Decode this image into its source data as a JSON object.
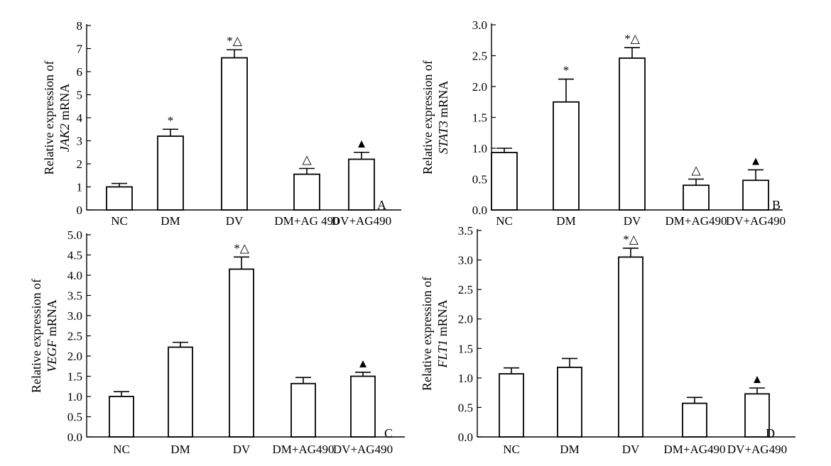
{
  "chart_data": [
    {
      "type": "bar",
      "panel_letter": "A",
      "ylabel_line1": "Relative expression of",
      "ylabel_gene": "JAK2",
      "ylabel_suffix": " mRNA",
      "ylim": [
        0,
        8
      ],
      "ticks": [
        "0",
        "1",
        "2",
        "3",
        "4",
        "5",
        "6",
        "7",
        "8"
      ],
      "categories": [
        "NC",
        "DM",
        "DV",
        "DM+AG 490",
        "DV+AG490"
      ],
      "values": [
        1.0,
        3.2,
        6.6,
        1.55,
        2.2
      ],
      "errors": [
        0.15,
        0.3,
        0.35,
        0.25,
        0.3
      ],
      "annotations": [
        "",
        "*",
        "*△",
        "△",
        "▲"
      ]
    },
    {
      "type": "bar",
      "panel_letter": "B",
      "ylabel_line1": "Relative expression of",
      "ylabel_gene": "STAT3",
      "ylabel_suffix": " mRNA",
      "ylim": [
        0,
        3
      ],
      "ticks": [
        "0.0",
        "0.5",
        "1.0",
        "1.5",
        "2.0",
        "2.5",
        "3.0"
      ],
      "categories": [
        "NC",
        "DM",
        "DV",
        "DM+AG490",
        "DV+AG490"
      ],
      "values": [
        0.93,
        1.75,
        2.46,
        0.4,
        0.48
      ],
      "errors": [
        0.07,
        0.37,
        0.17,
        0.1,
        0.17
      ],
      "annotations": [
        "",
        "*",
        "*△",
        "△",
        "▲"
      ]
    },
    {
      "type": "bar",
      "panel_letter": "C",
      "ylabel_line1": "Relative expression of",
      "ylabel_gene": "VEGF",
      "ylabel_suffix": " mRNA",
      "ylim": [
        0,
        5
      ],
      "ticks": [
        "0.0",
        "0.5",
        "1.0",
        "1.5",
        "2.0",
        "2.5",
        "3.0",
        "3.5",
        "4.0",
        "4.5",
        "5.0"
      ],
      "categories": [
        "NC",
        "DM",
        "DV",
        "DM+AG490",
        "DV+AG490"
      ],
      "values": [
        1.0,
        2.22,
        4.15,
        1.32,
        1.5
      ],
      "errors": [
        0.12,
        0.12,
        0.3,
        0.15,
        0.1
      ],
      "annotations": [
        "",
        "",
        "*△",
        "",
        "▲"
      ]
    },
    {
      "type": "bar",
      "panel_letter": "D",
      "ylabel_line1": "Relative expression of",
      "ylabel_gene": "FLT1",
      "ylabel_suffix": " mRNA",
      "ylim": [
        0,
        3.5
      ],
      "ticks": [
        "0.0",
        "0.5",
        "1.0",
        "1.5",
        "2.0",
        "2.5",
        "3.0",
        "3.5"
      ],
      "categories": [
        "NC",
        "DM",
        "DV",
        "DM+AG490",
        "DV+AG490"
      ],
      "values": [
        1.07,
        1.18,
        3.05,
        0.57,
        0.73
      ],
      "errors": [
        0.1,
        0.15,
        0.15,
        0.1,
        0.1
      ],
      "annotations": [
        "",
        "",
        "*△",
        "",
        "▲"
      ]
    }
  ]
}
